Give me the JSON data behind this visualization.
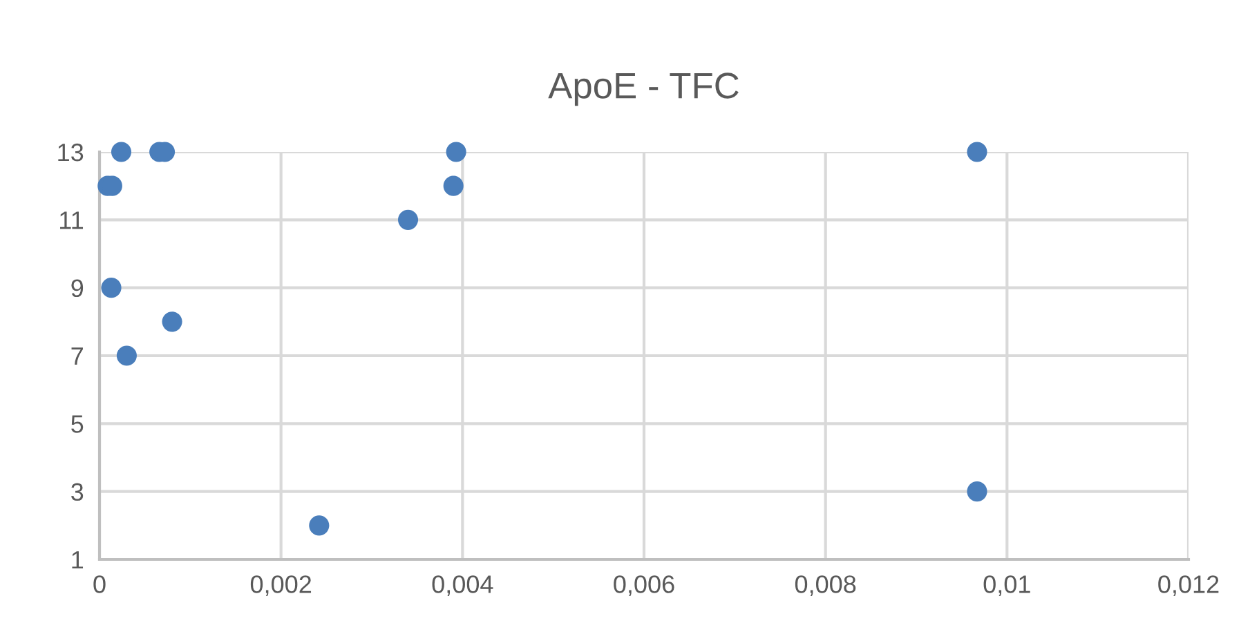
{
  "chart_data": {
    "type": "scatter",
    "title": "ApoE - TFC",
    "series": [
      {
        "color": "#4a7ebb",
        "x": [
          9e-05,
          0.00014,
          0.00024,
          0.00066,
          0.00072,
          0.00013,
          0.0008,
          0.0003,
          0.00242,
          0.0034,
          0.0039,
          0.00393,
          0.00967,
          0.00967
        ],
        "values": [
          12,
          12,
          13,
          13,
          13,
          9,
          8,
          7,
          2,
          11,
          12,
          13,
          13,
          3
        ]
      }
    ],
    "xlim": [
      0,
      0.012
    ],
    "xticks": [
      0,
      {
        "value": 0.002,
        "label": "0,002"
      },
      {
        "value": 0.004,
        "label": "0,004"
      },
      {
        "value": 0.006,
        "label": "0,006"
      },
      {
        "value": 0.008,
        "label": "0,008"
      },
      {
        "value": 0.01,
        "label": "0,01"
      },
      {
        "value": 0.012,
        "label": "0,012"
      }
    ],
    "ylim": [
      1,
      13
    ],
    "yticks": [
      1,
      3,
      5,
      7,
      9,
      11,
      13
    ],
    "grid": true,
    "legend": false,
    "marker": "circle"
  }
}
